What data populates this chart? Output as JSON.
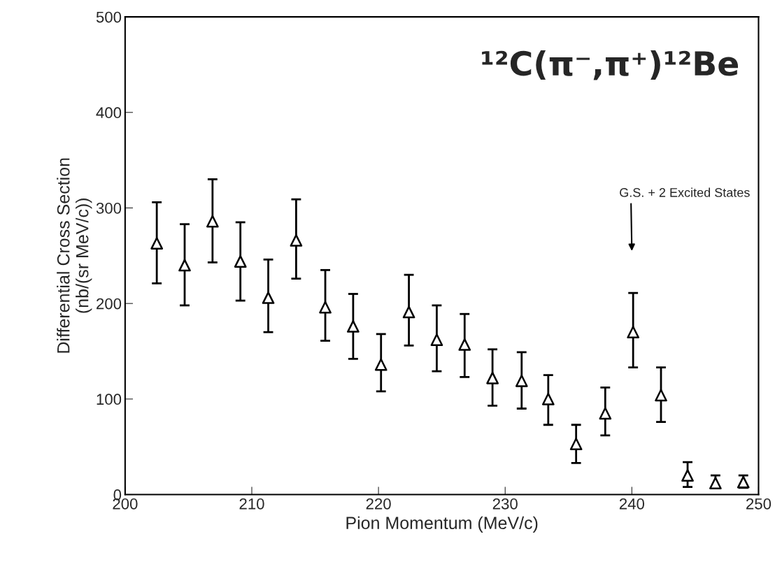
{
  "chart_data": {
    "type": "scatter",
    "title": "¹²C(π⁻,π⁺)¹²Be",
    "xlabel": "Pion Momentum (MeV/c)",
    "ylabel": "Differential Cross Section\n(nb/(sr MeV/c))",
    "x": [
      202.5,
      204.7,
      206.9,
      209.1,
      211.3,
      213.5,
      215.8,
      218.0,
      220.2,
      222.4,
      224.6,
      226.8,
      229.0,
      231.3,
      233.4,
      235.6,
      237.9,
      240.1,
      242.3,
      244.4,
      246.6,
      248.8
    ],
    "series": [
      {
        "color": "#000000",
        "values": [
          263,
          240,
          286,
          244,
          206,
          266,
          196,
          176,
          136,
          191,
          162,
          157,
          122,
          119,
          100,
          53,
          85,
          170,
          104,
          20,
          12,
          13
        ],
        "errors": [
          [
            221,
            306
          ],
          [
            198,
            283
          ],
          [
            243,
            330
          ],
          [
            203,
            285
          ],
          [
            170,
            246
          ],
          [
            226,
            309
          ],
          [
            161,
            235
          ],
          [
            142,
            210
          ],
          [
            108,
            168
          ],
          [
            156,
            230
          ],
          [
            129,
            198
          ],
          [
            123,
            189
          ],
          [
            93,
            152
          ],
          [
            90,
            149
          ],
          [
            73,
            125
          ],
          [
            33,
            73
          ],
          [
            62,
            112
          ],
          [
            133,
            211
          ],
          [
            76,
            133
          ],
          [
            8,
            34
          ],
          [
            7,
            20
          ],
          [
            7,
            20
          ]
        ]
      }
    ],
    "annotations": [
      "G.S. + 2 Excited States"
    ],
    "xlim": [
      200,
      250
    ],
    "xticks": [
      200,
      210,
      220,
      230,
      240,
      250
    ],
    "ylim": [
      0,
      500
    ],
    "yticks": [
      0,
      100,
      200,
      300,
      400,
      500
    ],
    "marker": "triangle",
    "grid": false,
    "legend": false
  }
}
